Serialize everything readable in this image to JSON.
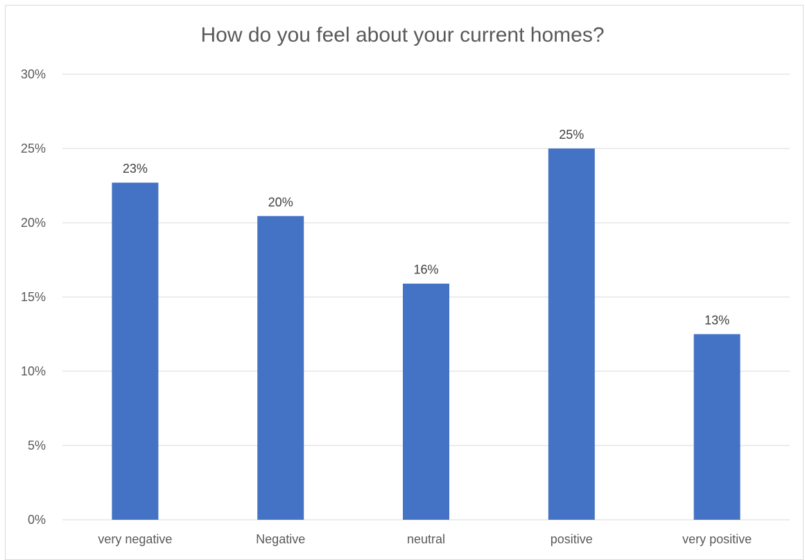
{
  "chart_data": {
    "type": "bar",
    "title": "How do you feel about your current homes?",
    "xlabel": "",
    "ylabel": "",
    "categories": [
      "very negative",
      "Negative",
      "neutral",
      "positive",
      "very positive"
    ],
    "values": [
      22.7,
      20.45,
      15.9,
      25.0,
      12.5
    ],
    "data_labels": [
      "23%",
      "20%",
      "16%",
      "25%",
      "13%"
    ],
    "ylim": [
      0,
      30
    ],
    "yticks": [
      0,
      5,
      10,
      15,
      20,
      25,
      30
    ],
    "ytick_labels": [
      "0%",
      "5%",
      "10%",
      "15%",
      "20%",
      "25%",
      "30%"
    ],
    "grid": true,
    "legend": "none",
    "colors": {
      "bar": "#4472c4",
      "grid": "#d9d9d9",
      "text": "#595959",
      "label": "#404040"
    }
  }
}
